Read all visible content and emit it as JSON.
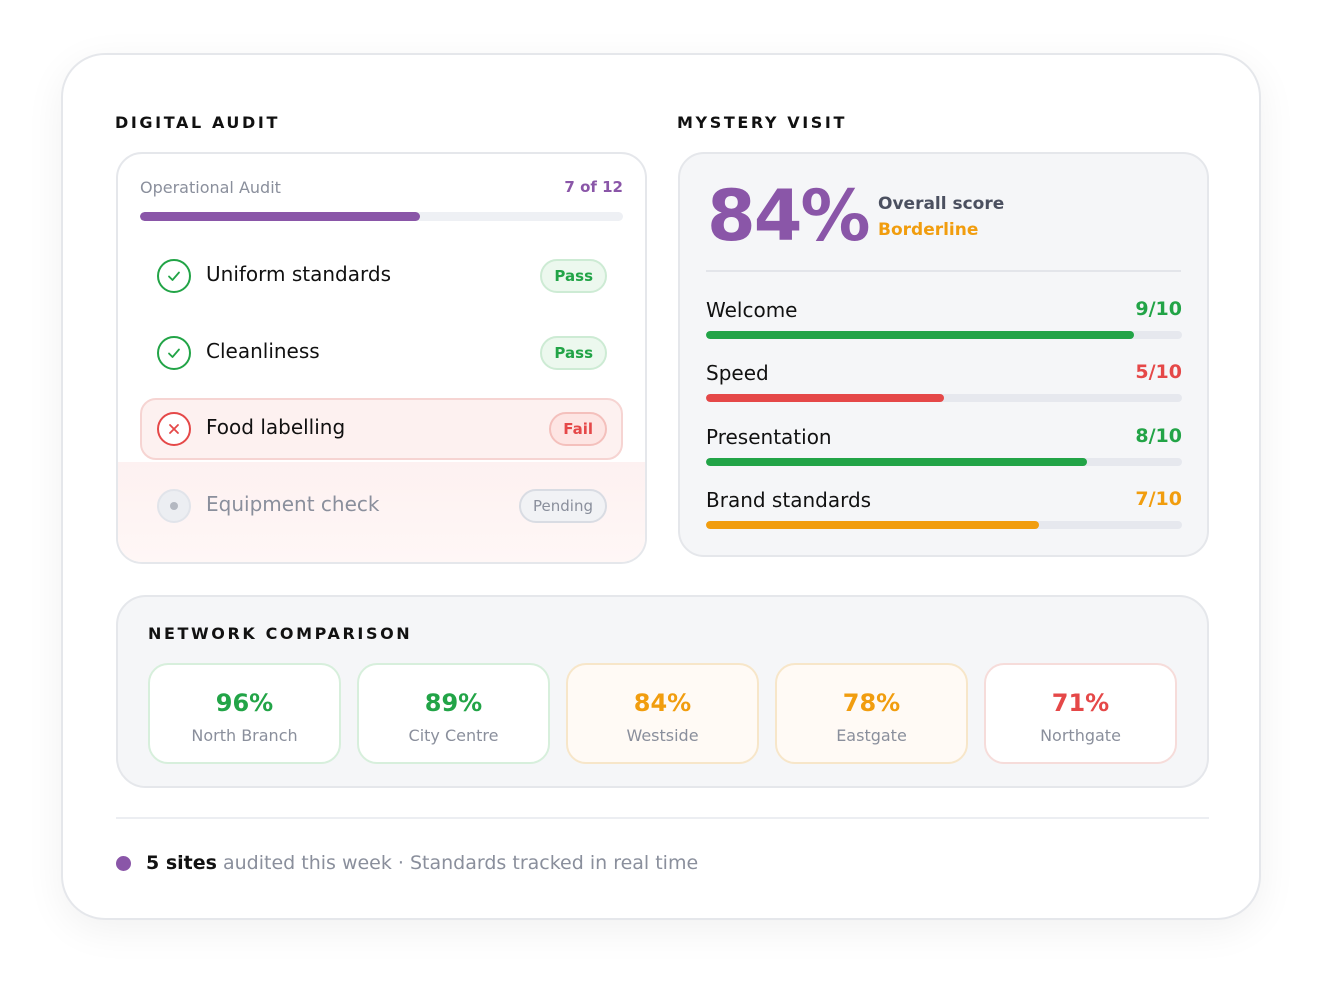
{
  "digital_audit": {
    "title": "DIGITAL AUDIT",
    "audit_name": "Operational Audit",
    "count": "7 of 12",
    "progress": 0.58,
    "items": [
      {
        "label": "Uniform standards",
        "status": "Pass",
        "icon": "check-icon"
      },
      {
        "label": "Cleanliness",
        "status": "Pass",
        "icon": "check-icon"
      },
      {
        "label": "Food labelling",
        "status": "Fail",
        "icon": "cross-icon"
      },
      {
        "label": "Equipment check",
        "status": "Pending",
        "icon": "dot-icon"
      }
    ]
  },
  "mystery_visit": {
    "title": "MYSTERY VISIT",
    "score": "84%",
    "score_label": "Overall score",
    "score_status": "Borderline",
    "metrics": [
      {
        "label": "Welcome",
        "value": "9/10",
        "fraction": 0.9,
        "color": "#22a447"
      },
      {
        "label": "Speed",
        "value": "5/10",
        "fraction": 0.5,
        "color": "#e54848"
      },
      {
        "label": "Presentation",
        "value": "8/10",
        "fraction": 0.8,
        "color": "#22a447"
      },
      {
        "label": "Brand standards",
        "value": "7/10",
        "fraction": 0.7,
        "color": "#f19d0e"
      }
    ]
  },
  "network_comparison": {
    "title": "NETWORK COMPARISON",
    "sites": [
      {
        "score": "96%",
        "name": "North Branch",
        "color": "#22a447"
      },
      {
        "score": "89%",
        "name": "City Centre",
        "color": "#22a447"
      },
      {
        "score": "84%",
        "name": "Westside",
        "color": "#f19d0e"
      },
      {
        "score": "78%",
        "name": "Eastgate",
        "color": "#f19d0e"
      },
      {
        "score": "71%",
        "name": "Northgate",
        "color": "#e54848"
      }
    ]
  },
  "footer": {
    "strong": "5 sites",
    "text": " audited this week · Standards tracked in real time"
  },
  "colors": {
    "accent": "#8a56a8",
    "pass": "#22a447",
    "fail": "#e54848",
    "warning": "#f19d0e"
  }
}
